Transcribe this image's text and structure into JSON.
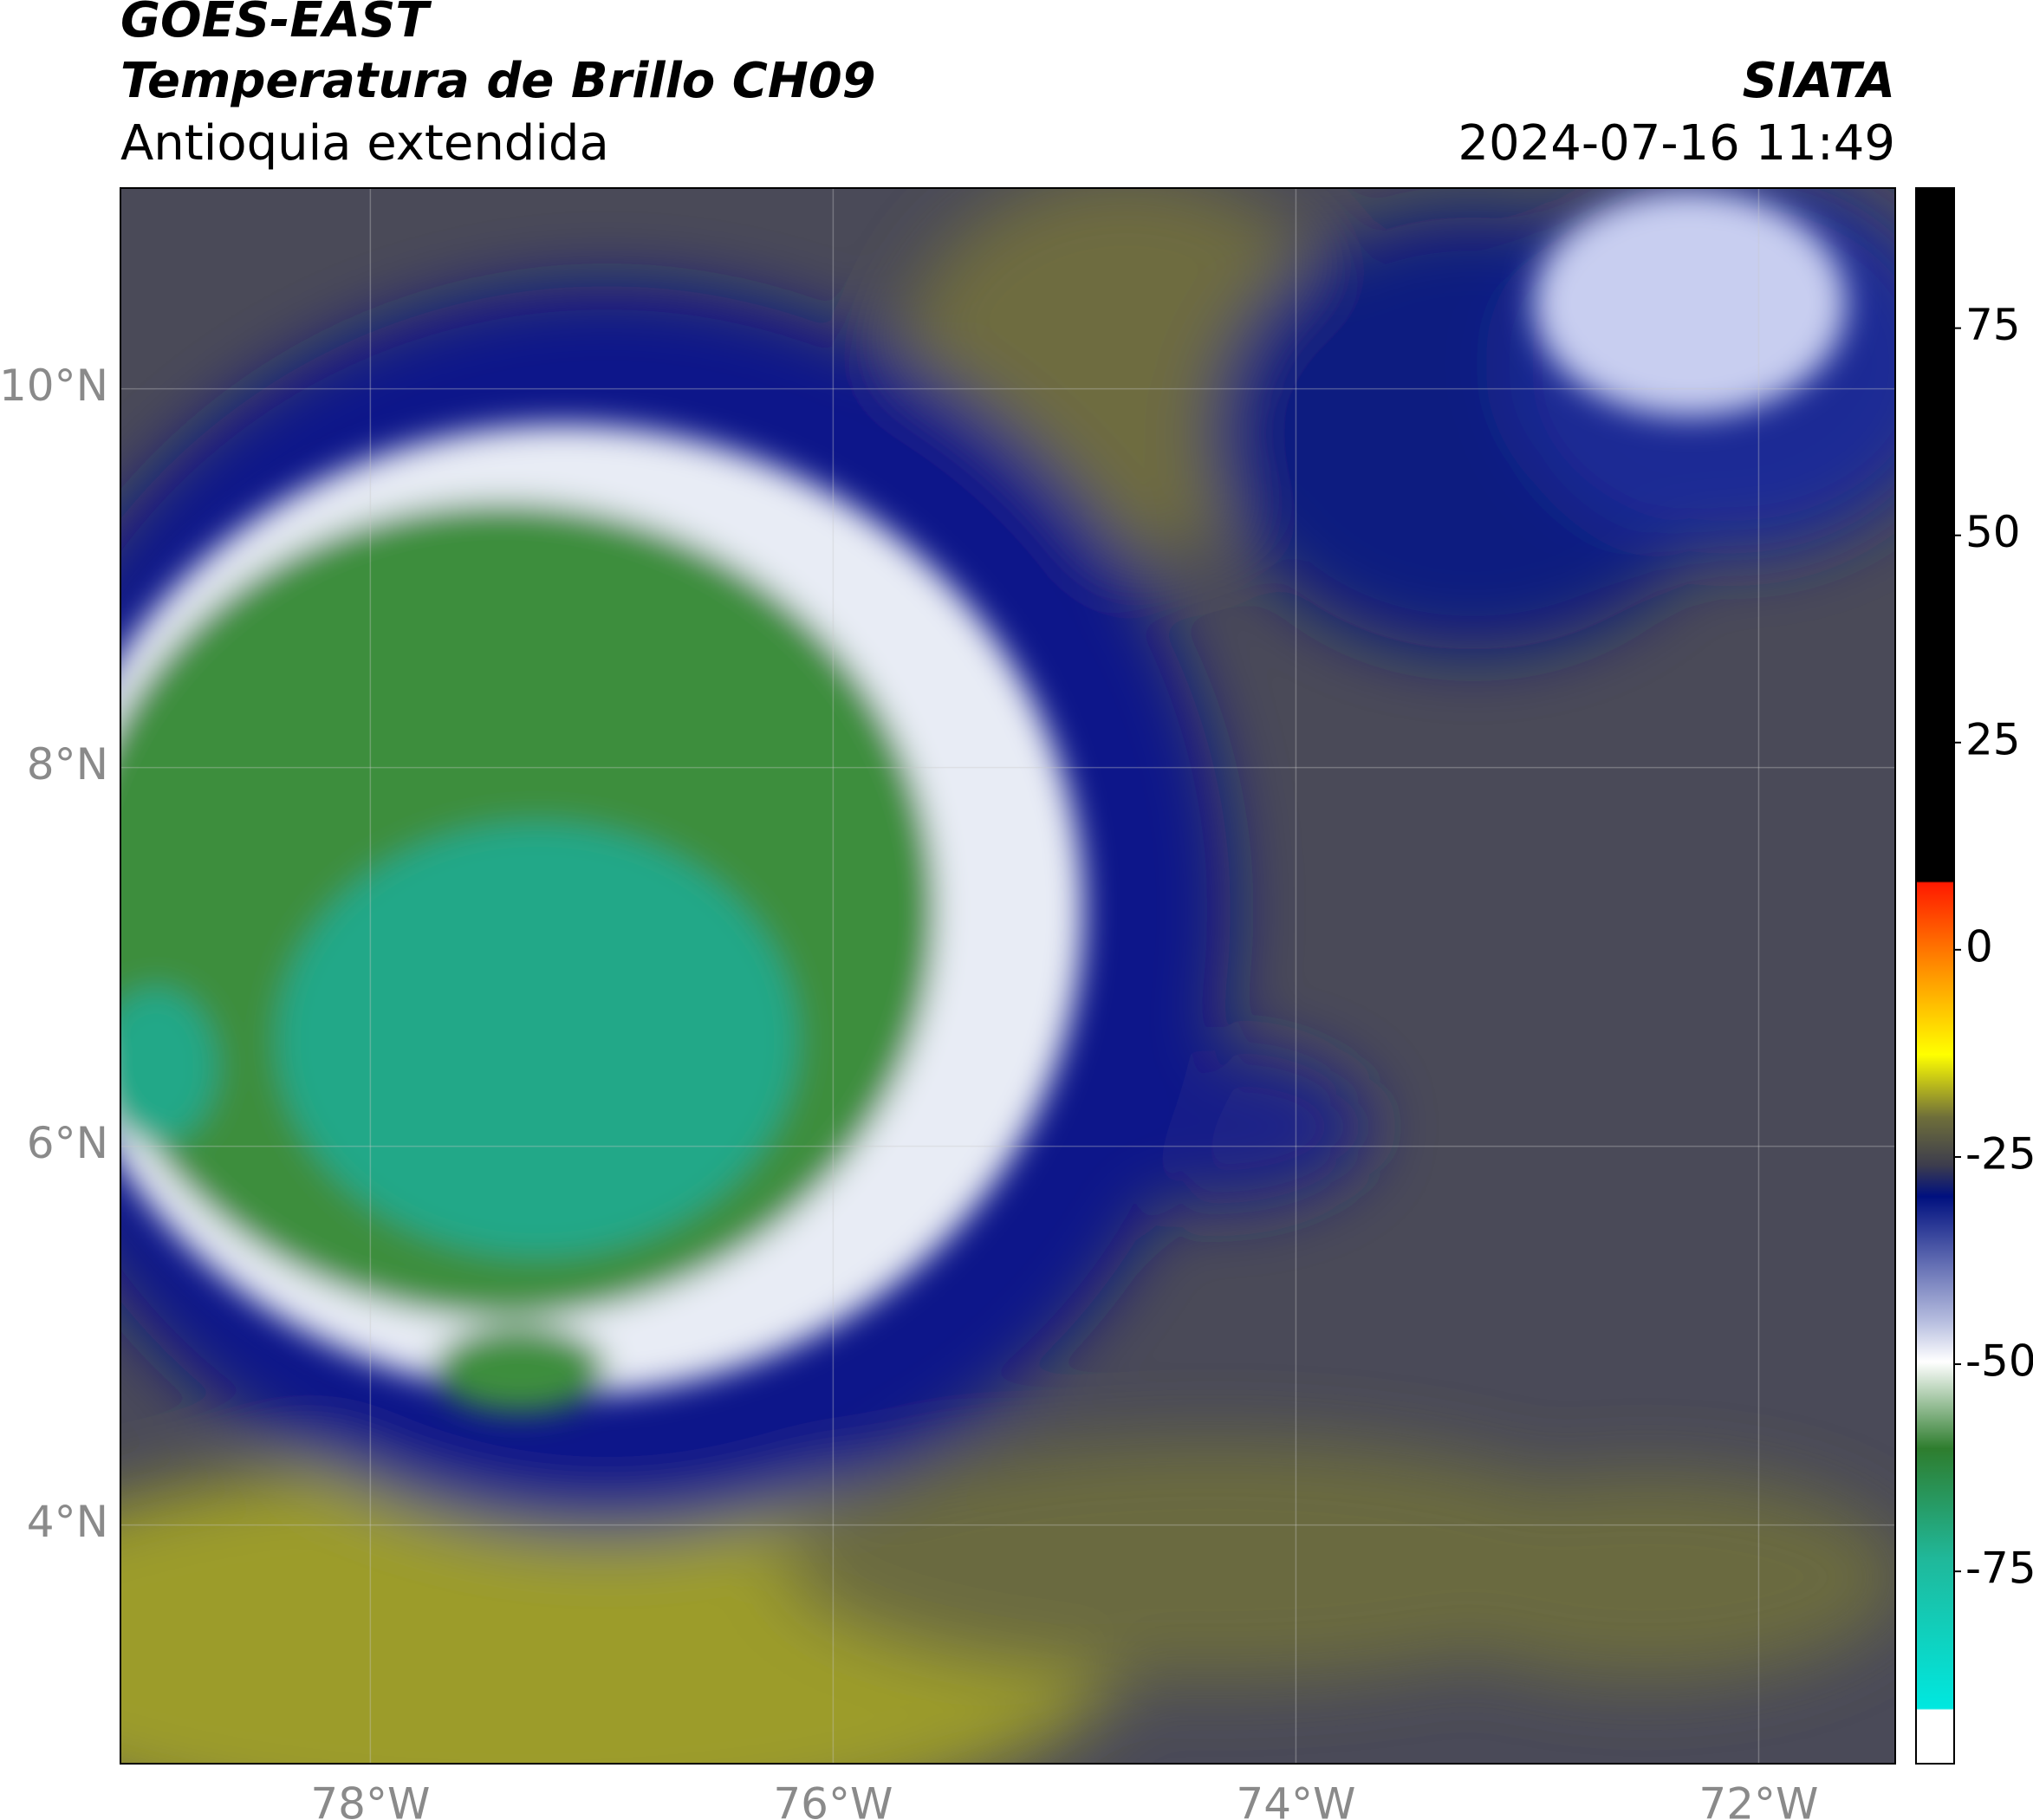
{
  "header": {
    "title": "GOES-EAST",
    "subtitle": "Temperatura de Brillo CH09",
    "region": "Antioquia extendida",
    "source": "SIATA",
    "datetime": "2024-07-16 11:49"
  },
  "map": {
    "xlim": [
      -79.08,
      -71.41
    ],
    "ylim": [
      2.74,
      11.06
    ],
    "xticks": [
      {
        "value": -78,
        "label": "78°W"
      },
      {
        "value": -76,
        "label": "76°W"
      },
      {
        "value": -74,
        "label": "74°W"
      },
      {
        "value": -72,
        "label": "72°W"
      }
    ],
    "yticks": [
      {
        "value": 10,
        "label": "10°N"
      },
      {
        "value": 8,
        "label": "8°N"
      },
      {
        "value": 6,
        "label": "6°N"
      },
      {
        "value": 4,
        "label": "4°N"
      }
    ]
  },
  "colorbar": {
    "lim": [
      -98.2,
      91.9
    ],
    "ticks": [
      75,
      50,
      25,
      0,
      -25,
      -50,
      -75
    ]
  }
}
